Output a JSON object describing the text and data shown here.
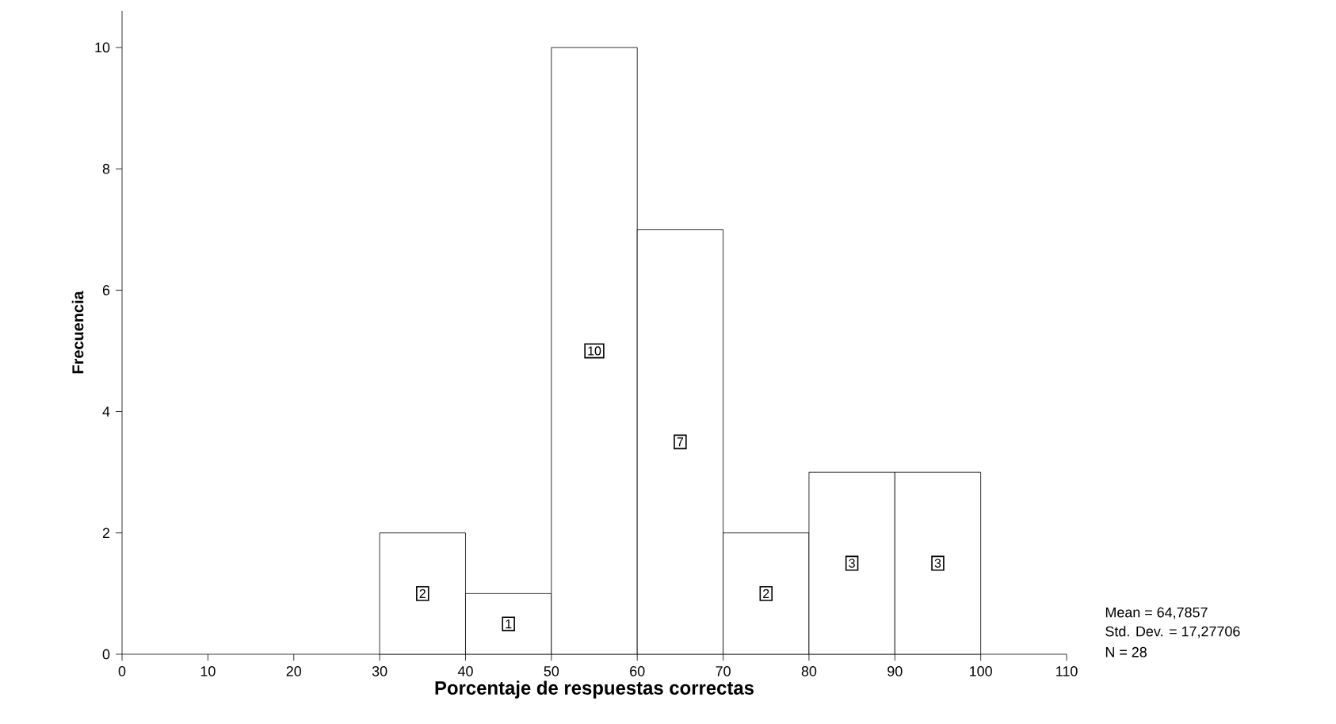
{
  "chart_data": {
    "type": "histogram",
    "xlabel": "Porcentaje de respuestas correctas",
    "ylabel": "Frecuencia",
    "bins": [
      30,
      40,
      50,
      60,
      70,
      80,
      90,
      100
    ],
    "values": [
      2,
      1,
      10,
      7,
      2,
      3,
      3
    ],
    "color": "#ffffff",
    "xlim": [
      0,
      110
    ],
    "xticks": [
      0,
      10,
      20,
      30,
      40,
      50,
      60,
      70,
      80,
      90,
      100,
      110
    ],
    "ylim": [
      0,
      10.6
    ],
    "yticks": [
      0,
      2,
      4,
      6,
      8,
      10
    ],
    "data_labels": true,
    "annotations": [
      "Mean = 64,7857",
      "Std. Dev. = 17,27706",
      "N = 28"
    ]
  }
}
